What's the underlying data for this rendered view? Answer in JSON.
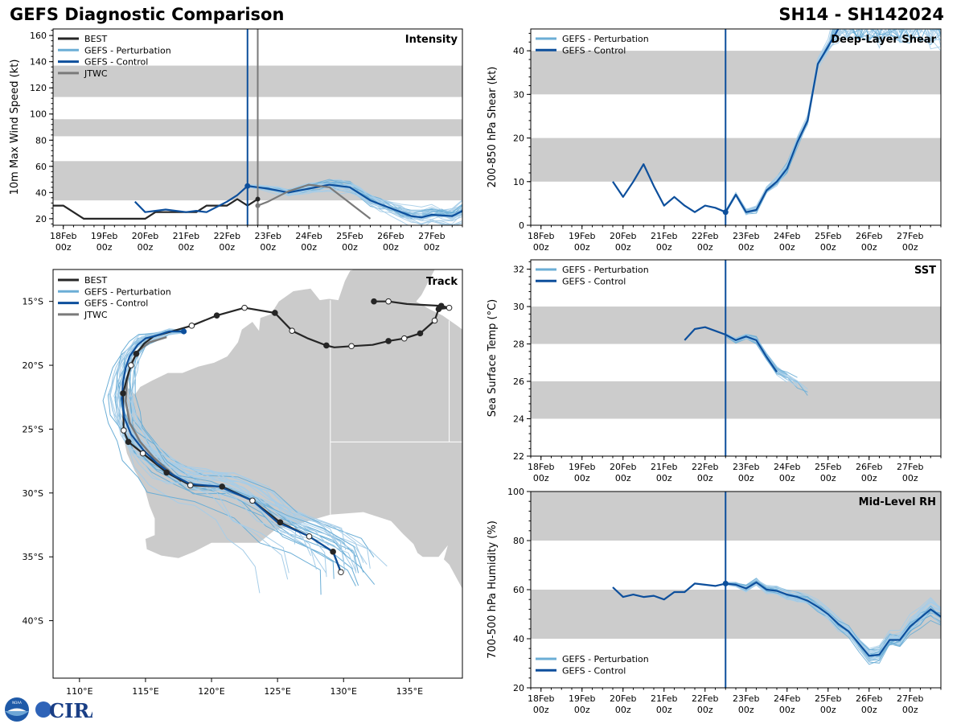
{
  "header": {
    "title": "GEFS Diagnostic Comparison",
    "storm": "SH14 - SH142024"
  },
  "colors": {
    "best": "#262626",
    "perturbation": "#6baed6",
    "perturbation_light": "#a6cde8",
    "control": "#0d4f9c",
    "jtwc": "#7a7a7a",
    "band": "#cccccc",
    "land": "#cbcbcb"
  },
  "time_axis": {
    "labels": [
      "18Feb 00z",
      "19Feb 00z",
      "20Feb 00z",
      "21Feb 00z",
      "22Feb 00z",
      "23Feb 00z",
      "24Feb 00z",
      "25Feb 00z",
      "26Feb 00z",
      "27Feb 00z"
    ],
    "init_day": 4.5
  },
  "logo": {
    "left": "NOAA",
    "right": "CIRA"
  },
  "chart_data": [
    {
      "id": "intensity",
      "type": "line",
      "title": "Intensity",
      "ylabel": "10m Max Wind Speed (kt)",
      "xlim": [
        -0.25,
        9.75
      ],
      "ylim": [
        15,
        165
      ],
      "yticks": [
        20,
        40,
        60,
        80,
        100,
        120,
        140,
        160
      ],
      "bands": [
        [
          34,
          64
        ],
        [
          83,
          96
        ],
        [
          113,
          137
        ]
      ],
      "legend": [
        "BEST",
        "GEFS - Perturbation",
        "GEFS - Control",
        "JTWC"
      ],
      "series": [
        {
          "name": "BEST",
          "x": [
            -0.25,
            0,
            0.5,
            1,
            1.5,
            2,
            2.25,
            2.5,
            3,
            3.25,
            3.5,
            4,
            4.25,
            4.5,
            4.75
          ],
          "y": [
            30,
            30,
            20,
            20,
            20,
            20,
            25,
            25,
            25,
            25,
            30,
            30,
            35,
            30,
            35
          ]
        },
        {
          "name": "GEFS - Control",
          "x": [
            1.75,
            2,
            2.25,
            2.5,
            3,
            3.25,
            3.5,
            4,
            4.25,
            4.5,
            5,
            5.5,
            6,
            6.5,
            7,
            7.5,
            8,
            8.25,
            8.5,
            8.75,
            9,
            9.5,
            9.75
          ],
          "y": [
            33,
            25,
            26,
            27,
            25,
            26,
            25,
            33,
            38,
            45,
            43,
            40,
            43,
            46,
            44,
            34,
            28,
            25,
            22,
            21,
            23,
            22,
            26
          ]
        },
        {
          "name": "JTWC",
          "x": [
            4.75,
            5,
            5.5,
            6,
            6.5,
            7,
            7.5
          ],
          "y": [
            30,
            33,
            41,
            46,
            44,
            32,
            20
          ]
        }
      ],
      "markers": {
        "BEST_end": [
          4.75,
          35
        ],
        "Control_init": [
          4.5,
          45
        ],
        "JTWC_start": [
          4.75,
          30
        ]
      },
      "perturbation_members": 30
    },
    {
      "id": "shear",
      "type": "line",
      "title": "Deep-Layer Shear",
      "ylabel": "200-850 hPa Shear (kt)",
      "xlim": [
        -0.25,
        9.75
      ],
      "ylim": [
        0,
        45
      ],
      "yticks": [
        0,
        10,
        20,
        30,
        40
      ],
      "bands": [
        [
          10,
          20
        ],
        [
          30,
          40
        ]
      ],
      "legend": [
        "GEFS - Perturbation",
        "GEFS - Control"
      ],
      "series": [
        {
          "name": "GEFS - Control",
          "x": [
            1.75,
            2,
            2.25,
            2.5,
            2.75,
            3,
            3.25,
            3.5,
            3.75,
            4,
            4.25,
            4.5,
            4.75,
            5,
            5.25,
            5.5,
            5.75,
            6,
            6.25,
            6.5,
            6.75,
            7,
            7.25
          ],
          "y": [
            10,
            6.5,
            10,
            14,
            9,
            4.5,
            6.5,
            4.5,
            3,
            4.5,
            4,
            3,
            7,
            3,
            3.5,
            8,
            10,
            13,
            19,
            24,
            37,
            41,
            45
          ]
        }
      ],
      "markers": {
        "Control_init": [
          4.5,
          3
        ]
      },
      "perturbation_members": 30
    },
    {
      "id": "sst",
      "type": "line",
      "title": "SST",
      "ylabel": "Sea Surface Temp (°C)",
      "xlim": [
        -0.25,
        9.75
      ],
      "ylim": [
        22,
        32.5
      ],
      "yticks": [
        22,
        24,
        26,
        28,
        30,
        32
      ],
      "bands": [
        [
          24,
          26
        ],
        [
          28,
          30
        ]
      ],
      "legend": [
        "GEFS - Perturbation",
        "GEFS - Control"
      ],
      "series": [
        {
          "name": "GEFS - Control",
          "x": [
            3.5,
            3.75,
            4,
            4.25,
            4.5,
            4.75,
            5,
            5.25,
            5.5,
            5.75
          ],
          "y": [
            28.2,
            28.8,
            28.9,
            28.7,
            28.5,
            28.2,
            28.4,
            28.2,
            27.3,
            26.5
          ]
        }
      ],
      "perturbation_members": 20
    },
    {
      "id": "rh",
      "type": "line",
      "title": "Mid-Level RH",
      "ylabel": "700-500 hPa Humidity (%)",
      "xlim": [
        -0.25,
        9.75
      ],
      "ylim": [
        20,
        100
      ],
      "yticks": [
        20,
        40,
        60,
        80,
        100
      ],
      "bands": [
        [
          40,
          60
        ],
        [
          80,
          100
        ]
      ],
      "legend": [
        "GEFS - Perturbation",
        "GEFS - Control"
      ],
      "series": [
        {
          "name": "GEFS - Control",
          "x": [
            1.75,
            2,
            2.25,
            2.5,
            2.75,
            3,
            3.25,
            3.5,
            3.75,
            4,
            4.25,
            4.5,
            4.75,
            5,
            5.25,
            5.5,
            5.75,
            6,
            6.25,
            6.5,
            6.75,
            7,
            7.25,
            7.5,
            7.75,
            8,
            8.25,
            8.5,
            8.75,
            9,
            9.25,
            9.5,
            9.75
          ],
          "y": [
            61,
            57,
            58,
            57,
            57.5,
            56,
            59,
            59,
            62.5,
            62,
            61.5,
            62.5,
            62,
            60.5,
            63,
            60,
            59.5,
            58,
            57,
            55.5,
            53,
            50,
            46,
            43,
            38,
            33,
            33.5,
            39.5,
            39.5,
            45,
            48.5,
            52,
            49
          ]
        }
      ],
      "markers": {
        "Control_init": [
          4.5,
          62.5
        ]
      },
      "perturbation_members": 30
    },
    {
      "id": "track",
      "type": "map",
      "title": "Track",
      "xlim": [
        108,
        139
      ],
      "ylim": [
        -44.5,
        -12.5
      ],
      "xticks": [
        110,
        115,
        120,
        125,
        130,
        135
      ],
      "xtick_labels": [
        "110°E",
        "115°E",
        "120°E",
        "125°E",
        "130°E",
        "135°E"
      ],
      "yticks": [
        -15,
        -20,
        -25,
        -30,
        -35,
        -40
      ],
      "ytick_labels": [
        "15°S",
        "20°S",
        "25°S",
        "30°S",
        "35°S",
        "40°S"
      ],
      "legend": [
        "BEST",
        "GEFS - Perturbation",
        "GEFS - Control",
        "JTWC"
      ],
      "series": [
        {
          "name": "BEST",
          "lon": [
            132.3,
            133.4,
            134.8,
            136.4,
            137.4,
            138.0,
            137.2,
            136.9,
            135.8,
            134.6,
            133.4,
            132.2,
            130.6,
            129.3,
            128.7,
            127.3,
            126.1,
            124.8,
            122.5,
            120.4,
            118.5,
            116.8,
            115.6,
            114.9,
            114.3,
            113.9,
            113.6,
            113.3,
            113.35,
            113.7,
            114.8,
            116.6,
            118.4,
            120.8,
            123.1,
            125.2,
            127.4,
            129.2,
            129.8
          ],
          "lat": [
            -15.0,
            -15.0,
            -15.2,
            -15.3,
            -15.35,
            -15.5,
            -15.6,
            -16.5,
            -17.5,
            -17.9,
            -18.1,
            -18.4,
            -18.5,
            -18.6,
            -18.45,
            -17.9,
            -17.3,
            -15.9,
            -15.5,
            -16.1,
            -16.9,
            -17.4,
            -17.75,
            -18.3,
            -19.1,
            -20.0,
            -21.0,
            -22.2,
            -25.1,
            -26.0,
            -26.9,
            -28.4,
            -29.4,
            -29.5,
            -30.6,
            -32.3,
            -33.4,
            -34.6,
            -36.2
          ]
        },
        {
          "name": "GEFS - Control",
          "lon": [
            117.9,
            116.8,
            115.9,
            115.0,
            114.4,
            113.8,
            113.5,
            113.3,
            113.2,
            113.4,
            113.9,
            114.8,
            115.9,
            117.1,
            118.4,
            120.6,
            123.1,
            125.0,
            127.4,
            129.2,
            129.8
          ],
          "lat": [
            -17.35,
            -17.35,
            -17.65,
            -17.9,
            -18.4,
            -19.3,
            -20.2,
            -21.3,
            -22.6,
            -24.1,
            -25.4,
            -26.6,
            -27.7,
            -28.6,
            -29.3,
            -29.5,
            -30.6,
            -32.3,
            -33.4,
            -34.6,
            -36.2
          ]
        },
        {
          "name": "JTWC",
          "lon": [
            116.6,
            115.3,
            114.4,
            113.9,
            113.6,
            113.5,
            113.8,
            114.6,
            115.6,
            116.8,
            117.7
          ],
          "lat": [
            -17.8,
            -18.2,
            -18.9,
            -19.9,
            -21.2,
            -22.8,
            -24.5,
            -26.0,
            -27.2,
            -28.3,
            -29.1
          ]
        }
      ],
      "perturbation_members": 30
    }
  ]
}
